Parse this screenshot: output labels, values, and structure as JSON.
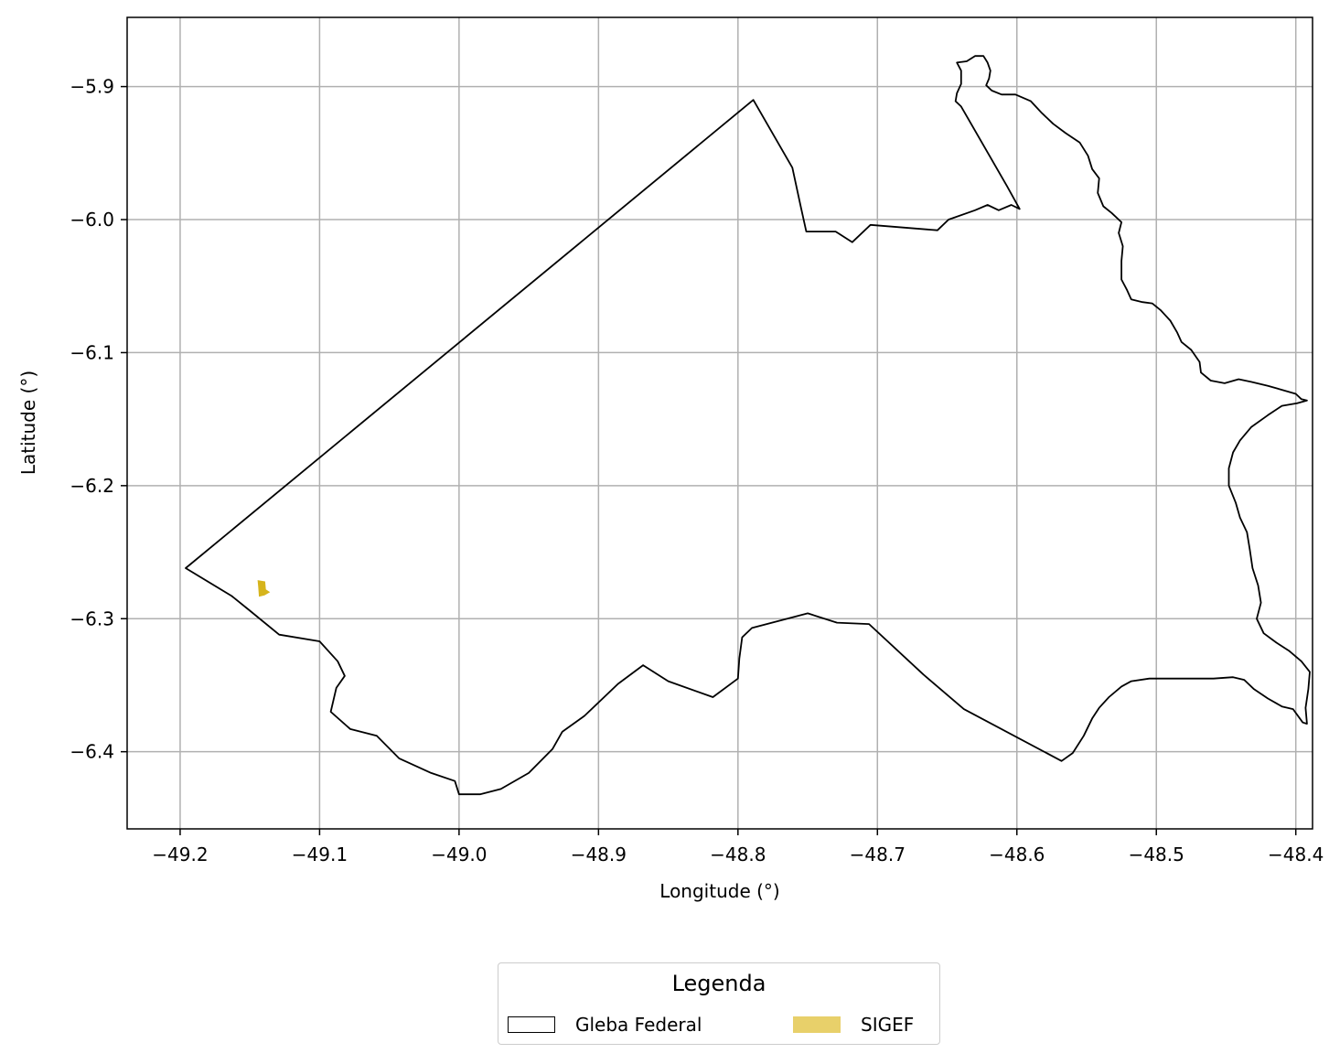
{
  "chart_data": {
    "type": "map",
    "xlabel": "Longitude (°)",
    "ylabel": "Latitude (°)",
    "xlim": [
      -49.238,
      -48.388
    ],
    "ylim": [
      -6.458,
      -5.848
    ],
    "xticks": [
      -49.2,
      -49.1,
      -49.0,
      -48.9,
      -48.8,
      -48.7,
      -48.6,
      -48.5,
      -48.4
    ],
    "yticks": [
      -6.4,
      -6.3,
      -6.2,
      -6.1,
      -6.0,
      -5.9
    ],
    "xtick_labels": [
      "−49.2",
      "−49.1",
      "−49.0",
      "−48.9",
      "−48.8",
      "−48.7",
      "−48.6",
      "−48.5",
      "−48.4"
    ],
    "ytick_labels": [
      "−6.4",
      "−6.3",
      "−6.2",
      "−6.1",
      "−6.0",
      "−5.9"
    ],
    "grid": true,
    "legend": {
      "title": "Legenda",
      "placement": "bottom-center",
      "entries": [
        {
          "label": "Gleba Federal",
          "style": "outline",
          "color": "#000000"
        },
        {
          "label": "SIGEF",
          "style": "fill",
          "color": "#e8d06a"
        }
      ]
    },
    "series": [
      {
        "name": "Gleba Federal",
        "kind": "polygon",
        "stroke": "#000000",
        "fill": "none",
        "coords": [
          [
            -49.196,
            -6.262
          ],
          [
            -48.789,
            -5.91
          ],
          [
            -48.761,
            -5.961
          ],
          [
            -48.755,
            -5.99
          ],
          [
            -48.751,
            -6.009
          ],
          [
            -48.73,
            -6.009
          ],
          [
            -48.718,
            -6.017
          ],
          [
            -48.705,
            -6.004
          ],
          [
            -48.657,
            -6.008
          ],
          [
            -48.649,
            -6.0
          ],
          [
            -48.63,
            -5.993
          ],
          [
            -48.621,
            -5.989
          ],
          [
            -48.613,
            -5.993
          ],
          [
            -48.604,
            -5.989
          ],
          [
            -48.598,
            -5.992
          ],
          [
            -48.607,
            -5.975
          ],
          [
            -48.64,
            -5.915
          ],
          [
            -48.644,
            -5.911
          ],
          [
            -48.643,
            -5.905
          ],
          [
            -48.64,
            -5.898
          ],
          [
            -48.64,
            -5.888
          ],
          [
            -48.643,
            -5.882
          ],
          [
            -48.636,
            -5.881
          ],
          [
            -48.63,
            -5.877
          ],
          [
            -48.624,
            -5.877
          ],
          [
            -48.621,
            -5.882
          ],
          [
            -48.619,
            -5.888
          ],
          [
            -48.62,
            -5.894
          ],
          [
            -48.622,
            -5.899
          ],
          [
            -48.618,
            -5.903
          ],
          [
            -48.611,
            -5.906
          ],
          [
            -48.601,
            -5.906
          ],
          [
            -48.59,
            -5.911
          ],
          [
            -48.582,
            -5.92
          ],
          [
            -48.574,
            -5.928
          ],
          [
            -48.565,
            -5.935
          ],
          [
            -48.555,
            -5.942
          ],
          [
            -48.549,
            -5.952
          ],
          [
            -48.546,
            -5.962
          ],
          [
            -48.541,
            -5.969
          ],
          [
            -48.542,
            -5.98
          ],
          [
            -48.538,
            -5.99
          ],
          [
            -48.532,
            -5.995
          ],
          [
            -48.525,
            -6.002
          ],
          [
            -48.527,
            -6.01
          ],
          [
            -48.524,
            -6.02
          ],
          [
            -48.525,
            -6.031
          ],
          [
            -48.525,
            -6.045
          ],
          [
            -48.521,
            -6.053
          ],
          [
            -48.518,
            -6.06
          ],
          [
            -48.51,
            -6.062
          ],
          [
            -48.503,
            -6.063
          ],
          [
            -48.497,
            -6.068
          ],
          [
            -48.49,
            -6.076
          ],
          [
            -48.485,
            -6.085
          ],
          [
            -48.482,
            -6.092
          ],
          [
            -48.475,
            -6.098
          ],
          [
            -48.469,
            -6.107
          ],
          [
            -48.468,
            -6.115
          ],
          [
            -48.461,
            -6.121
          ],
          [
            -48.451,
            -6.123
          ],
          [
            -48.441,
            -6.12
          ],
          [
            -48.432,
            -6.122
          ],
          [
            -48.42,
            -6.125
          ],
          [
            -48.41,
            -6.128
          ],
          [
            -48.4,
            -6.131
          ],
          [
            -48.396,
            -6.135
          ],
          [
            -48.392,
            -6.136
          ],
          [
            -48.399,
            -6.138
          ],
          [
            -48.41,
            -6.14
          ],
          [
            -48.42,
            -6.147
          ],
          [
            -48.432,
            -6.156
          ],
          [
            -48.44,
            -6.166
          ],
          [
            -48.445,
            -6.175
          ],
          [
            -48.448,
            -6.187
          ],
          [
            -48.448,
            -6.2
          ],
          [
            -48.443,
            -6.213
          ],
          [
            -48.44,
            -6.224
          ],
          [
            -48.435,
            -6.235
          ],
          [
            -48.433,
            -6.248
          ],
          [
            -48.431,
            -6.262
          ],
          [
            -48.427,
            -6.275
          ],
          [
            -48.425,
            -6.288
          ],
          [
            -48.428,
            -6.3
          ],
          [
            -48.423,
            -6.311
          ],
          [
            -48.414,
            -6.318
          ],
          [
            -48.405,
            -6.324
          ],
          [
            -48.396,
            -6.332
          ],
          [
            -48.39,
            -6.34
          ],
          [
            -48.391,
            -6.353
          ],
          [
            -48.393,
            -6.367
          ],
          [
            -48.392,
            -6.379
          ],
          [
            -48.395,
            -6.378
          ],
          [
            -48.402,
            -6.368
          ],
          [
            -48.41,
            -6.366
          ],
          [
            -48.42,
            -6.36
          ],
          [
            -48.43,
            -6.353
          ],
          [
            -48.437,
            -6.346
          ],
          [
            -48.445,
            -6.344
          ],
          [
            -48.459,
            -6.345
          ],
          [
            -48.475,
            -6.345
          ],
          [
            -48.491,
            -6.345
          ],
          [
            -48.505,
            -6.345
          ],
          [
            -48.518,
            -6.347
          ],
          [
            -48.525,
            -6.351
          ],
          [
            -48.534,
            -6.359
          ],
          [
            -48.541,
            -6.367
          ],
          [
            -48.546,
            -6.375
          ],
          [
            -48.552,
            -6.388
          ],
          [
            -48.56,
            -6.401
          ],
          [
            -48.568,
            -6.407
          ],
          [
            -48.638,
            -6.368
          ],
          [
            -48.667,
            -6.342
          ],
          [
            -48.706,
            -6.304
          ],
          [
            -48.729,
            -6.303
          ],
          [
            -48.75,
            -6.296
          ],
          [
            -48.79,
            -6.307
          ],
          [
            -48.797,
            -6.314
          ],
          [
            -48.799,
            -6.33
          ],
          [
            -48.8,
            -6.345
          ],
          [
            -48.818,
            -6.359
          ],
          [
            -48.85,
            -6.347
          ],
          [
            -48.868,
            -6.335
          ],
          [
            -48.886,
            -6.349
          ],
          [
            -48.91,
            -6.373
          ],
          [
            -48.926,
            -6.385
          ],
          [
            -48.933,
            -6.398
          ],
          [
            -48.95,
            -6.416
          ],
          [
            -48.97,
            -6.428
          ],
          [
            -48.985,
            -6.432
          ],
          [
            -49.0,
            -6.432
          ],
          [
            -49.003,
            -6.422
          ],
          [
            -49.02,
            -6.416
          ],
          [
            -49.043,
            -6.405
          ],
          [
            -49.059,
            -6.388
          ],
          [
            -49.078,
            -6.383
          ],
          [
            -49.092,
            -6.37
          ],
          [
            -49.088,
            -6.352
          ],
          [
            -49.082,
            -6.343
          ],
          [
            -49.087,
            -6.332
          ],
          [
            -49.1,
            -6.317
          ],
          [
            -49.129,
            -6.312
          ],
          [
            -49.15,
            -6.294
          ],
          [
            -49.163,
            -6.283
          ],
          [
            -49.196,
            -6.262
          ]
        ]
      },
      {
        "name": "SIGEF",
        "kind": "polygon",
        "stroke": "none",
        "fill": "#d6b41c",
        "coords": [
          [
            -49.1445,
            -6.271
          ],
          [
            -49.139,
            -6.272
          ],
          [
            -49.1385,
            -6.278
          ],
          [
            -49.1355,
            -6.28
          ],
          [
            -49.1395,
            -6.2825
          ],
          [
            -49.1435,
            -6.2835
          ],
          [
            -49.144,
            -6.276
          ]
        ]
      }
    ]
  }
}
